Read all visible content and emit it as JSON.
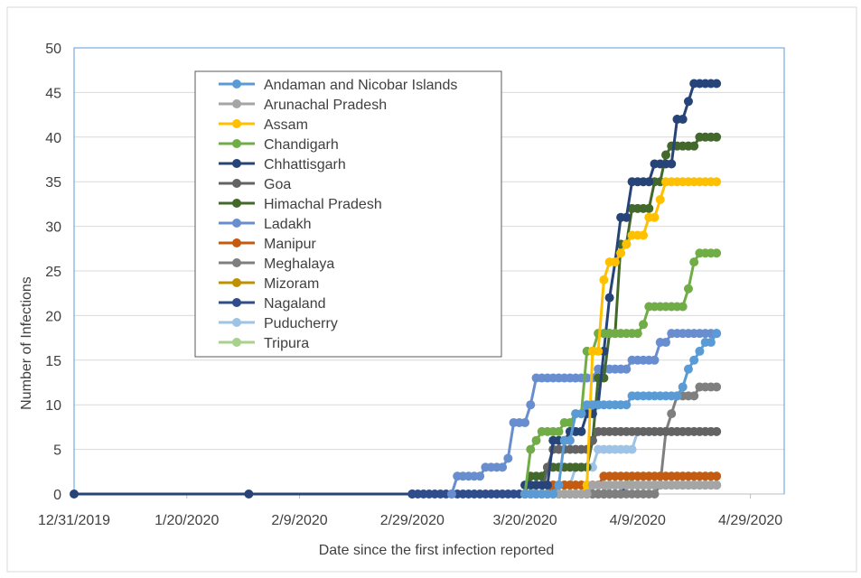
{
  "chart_data": {
    "type": "line",
    "title": "",
    "xlabel": "Date since the first infection reported",
    "ylabel": "Number of Infections",
    "x_tick_labels": [
      "12/31/2019",
      "1/20/2020",
      "2/9/2020",
      "2/29/2020",
      "3/20/2020",
      "4/9/2020",
      "4/29/2020"
    ],
    "y_tick_labels": [
      "0",
      "5",
      "10",
      "15",
      "20",
      "25",
      "30",
      "35",
      "40",
      "45",
      "50"
    ],
    "x_range": [
      "2019-12-31",
      "2020-05-05"
    ],
    "ylim": [
      0,
      50
    ],
    "grid": "horizontal",
    "legend_position": "upper-left inside plot",
    "series": [
      {
        "name": "Andaman and Nicobar Islands",
        "color": "#5B9BD5",
        "points": [
          [
            "2020-03-20",
            0
          ],
          [
            "2020-03-26",
            1
          ],
          [
            "2020-03-27",
            6
          ],
          [
            "2020-03-29",
            9
          ],
          [
            "2020-03-31",
            10
          ],
          [
            "2020-04-08",
            11
          ],
          [
            "2020-04-17",
            12
          ],
          [
            "2020-04-18",
            14
          ],
          [
            "2020-04-19",
            15
          ],
          [
            "2020-04-20",
            16
          ],
          [
            "2020-04-21",
            17
          ],
          [
            "2020-04-23",
            18
          ]
        ]
      },
      {
        "name": "Arunachal Pradesh",
        "color": "#A5A5A5",
        "points": [
          [
            "2020-03-20",
            0
          ],
          [
            "2020-04-01",
            1
          ],
          [
            "2020-04-23",
            1
          ]
        ]
      },
      {
        "name": "Assam",
        "color": "#FFC000",
        "points": [
          [
            "2020-03-20",
            0
          ],
          [
            "2020-03-31",
            1
          ],
          [
            "2020-04-01",
            16
          ],
          [
            "2020-04-03",
            24
          ],
          [
            "2020-04-04",
            26
          ],
          [
            "2020-04-06",
            27
          ],
          [
            "2020-04-07",
            28
          ],
          [
            "2020-04-08",
            29
          ],
          [
            "2020-04-10",
            29
          ],
          [
            "2020-04-11",
            31
          ],
          [
            "2020-04-13",
            33
          ],
          [
            "2020-04-14",
            35
          ],
          [
            "2020-04-23",
            35
          ]
        ]
      },
      {
        "name": "Chandigarh",
        "color": "#70AD47",
        "points": [
          [
            "2020-03-20",
            0
          ],
          [
            "2020-03-21",
            5
          ],
          [
            "2020-03-22",
            6
          ],
          [
            "2020-03-23",
            7
          ],
          [
            "2020-03-27",
            8
          ],
          [
            "2020-03-29",
            9
          ],
          [
            "2020-03-31",
            16
          ],
          [
            "2020-04-02",
            18
          ],
          [
            "2020-04-10",
            19
          ],
          [
            "2020-04-11",
            21
          ],
          [
            "2020-04-17",
            21
          ],
          [
            "2020-04-18",
            23
          ],
          [
            "2020-04-19",
            26
          ],
          [
            "2020-04-20",
            27
          ],
          [
            "2020-04-23",
            27
          ]
        ]
      },
      {
        "name": "Chhattisgarh",
        "color": "#264478",
        "points": [
          [
            "2020-03-20",
            1
          ],
          [
            "2020-03-25",
            6
          ],
          [
            "2020-03-28",
            7
          ],
          [
            "2020-03-31",
            9
          ],
          [
            "2020-04-02",
            10
          ],
          [
            "2020-04-03",
            16
          ],
          [
            "2020-04-04",
            22
          ],
          [
            "2020-04-05",
            26
          ],
          [
            "2020-04-06",
            31
          ],
          [
            "2020-04-07",
            31
          ],
          [
            "2020-04-08",
            35
          ],
          [
            "2020-04-11",
            35
          ],
          [
            "2020-04-12",
            37
          ],
          [
            "2020-04-13",
            37
          ],
          [
            "2020-04-14",
            37
          ],
          [
            "2020-04-16",
            42
          ],
          [
            "2020-04-17",
            42
          ],
          [
            "2020-04-18",
            44
          ],
          [
            "2020-04-19",
            46
          ],
          [
            "2020-04-23",
            46
          ]
        ]
      },
      {
        "name": "Goa",
        "color": "#636363",
        "points": [
          [
            "2020-03-20",
            0
          ],
          [
            "2020-03-24",
            3
          ],
          [
            "2020-03-25",
            5
          ],
          [
            "2020-04-01",
            6
          ],
          [
            "2020-04-02",
            7
          ],
          [
            "2020-04-10",
            7
          ],
          [
            "2020-04-23",
            7
          ]
        ]
      },
      {
        "name": "Himachal Pradesh",
        "color": "#43682B",
        "points": [
          [
            "2020-03-20",
            0
          ],
          [
            "2020-03-21",
            2
          ],
          [
            "2020-03-24",
            3
          ],
          [
            "2020-03-31",
            3
          ],
          [
            "2020-04-01",
            6
          ],
          [
            "2020-04-02",
            13
          ],
          [
            "2020-04-03",
            13
          ],
          [
            "2020-04-04",
            18
          ],
          [
            "2020-04-05",
            18
          ],
          [
            "2020-04-06",
            28
          ],
          [
            "2020-04-07",
            28
          ],
          [
            "2020-04-08",
            32
          ],
          [
            "2020-04-10",
            32
          ],
          [
            "2020-04-12",
            35
          ],
          [
            "2020-04-13",
            35
          ],
          [
            "2020-04-14",
            38
          ],
          [
            "2020-04-15",
            39
          ],
          [
            "2020-04-18",
            39
          ],
          [
            "2020-04-20",
            40
          ],
          [
            "2020-04-23",
            40
          ]
        ]
      },
      {
        "name": "Ladakh",
        "color": "#698ED0",
        "points": [
          [
            "2020-03-07",
            0
          ],
          [
            "2020-03-08",
            2
          ],
          [
            "2020-03-12",
            2
          ],
          [
            "2020-03-13",
            3
          ],
          [
            "2020-03-16",
            3
          ],
          [
            "2020-03-17",
            4
          ],
          [
            "2020-03-18",
            8
          ],
          [
            "2020-03-20",
            8
          ],
          [
            "2020-03-21",
            10
          ],
          [
            "2020-03-22",
            13
          ],
          [
            "2020-03-30",
            13
          ],
          [
            "2020-03-31",
            13
          ],
          [
            "2020-04-02",
            14
          ],
          [
            "2020-04-07",
            14
          ],
          [
            "2020-04-08",
            15
          ],
          [
            "2020-04-12",
            15
          ],
          [
            "2020-04-13",
            17
          ],
          [
            "2020-04-14",
            17
          ],
          [
            "2020-04-15",
            18
          ],
          [
            "2020-04-23",
            18
          ]
        ]
      },
      {
        "name": "Manipur",
        "color": "#C55A11",
        "points": [
          [
            "2020-03-20",
            0
          ],
          [
            "2020-03-25",
            1
          ],
          [
            "2020-04-03",
            2
          ],
          [
            "2020-04-10",
            2
          ],
          [
            "2020-04-23",
            2
          ]
        ]
      },
      {
        "name": "Meghalaya",
        "color": "#7F7F7F",
        "points": [
          [
            "2020-03-20",
            0
          ],
          [
            "2020-04-05",
            0
          ],
          [
            "2020-04-13",
            1
          ],
          [
            "2020-04-14",
            7
          ],
          [
            "2020-04-15",
            9
          ],
          [
            "2020-04-16",
            11
          ],
          [
            "2020-04-19",
            11
          ],
          [
            "2020-04-20",
            12
          ],
          [
            "2020-04-23",
            12
          ]
        ]
      },
      {
        "name": "Mizoram",
        "color": "#BF9000",
        "points": [
          [
            "2020-03-20",
            0
          ],
          [
            "2020-03-25",
            1
          ],
          [
            "2020-04-10",
            1
          ],
          [
            "2020-04-23",
            1
          ]
        ]
      },
      {
        "name": "Nagaland",
        "color": "#2F4D8B",
        "points": [
          [
            "2020-02-29",
            0
          ],
          [
            "2020-03-20",
            0
          ],
          [
            "2020-04-05",
            0
          ],
          [
            "2020-04-07",
            1
          ],
          [
            "2020-04-12",
            1
          ],
          [
            "2020-04-23",
            1
          ]
        ]
      },
      {
        "name": "Puducherry",
        "color": "#9DC3E6",
        "points": [
          [
            "2020-03-20",
            0
          ],
          [
            "2020-03-22",
            1
          ],
          [
            "2020-03-28",
            1
          ],
          [
            "2020-03-29",
            3
          ],
          [
            "2020-04-01",
            3
          ],
          [
            "2020-04-02",
            5
          ],
          [
            "2020-04-08",
            5
          ],
          [
            "2020-04-09",
            7
          ],
          [
            "2020-04-23",
            7
          ]
        ]
      },
      {
        "name": "Tripura",
        "color": "#A9D18E",
        "points": [
          [
            "2020-03-20",
            0
          ],
          [
            "2020-04-03",
            0
          ],
          [
            "2020-04-04",
            1
          ],
          [
            "2020-04-08",
            2
          ],
          [
            "2020-04-23",
            2
          ]
        ]
      }
    ],
    "flat_line": {
      "color": "#264478",
      "points": [
        [
          "2019-12-31",
          0
        ],
        [
          "2020-01-31",
          0
        ],
        [
          "2020-02-29",
          0
        ],
        [
          "2020-03-20",
          0
        ]
      ]
    }
  }
}
